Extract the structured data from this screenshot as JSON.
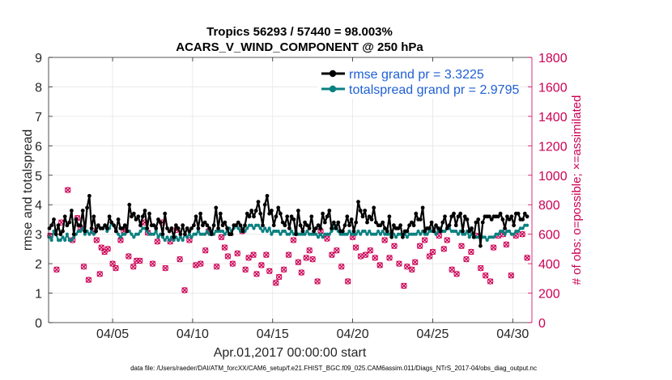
{
  "chart_data": {
    "type": "line",
    "title": "Tropics 56293 / 57440 = 98.003%",
    "subtitle": "ACARS_V_WIND_COMPONENT @ 250 hPa",
    "xlabel": "Apr.01,2017 00:00:00 start",
    "ylabel_left": "rmse and totalspread",
    "ylabel_right": "# of obs: o=possible; ×=assimilated",
    "footer": "data file: /Users/raeder/DAI/ATM_forcXX/CAM6_setup/f.e21.FHIST_BGC.f09_025.CAM6assim.011/Diags_NTrS_2017-04/obs_diag_output.nc",
    "xlim": [
      1.0,
      31.2
    ],
    "ylim_left": [
      0,
      9
    ],
    "ylim_right": [
      0,
      1800
    ],
    "x_ticks": [
      5,
      10,
      15,
      20,
      25,
      30
    ],
    "x_tick_labels": [
      "04/05",
      "04/10",
      "04/15",
      "04/20",
      "04/25",
      "04/30"
    ],
    "y_left_ticks": [
      "0",
      "1",
      "2",
      "3",
      "4",
      "5",
      "6",
      "7",
      "8",
      "9"
    ],
    "y_right_ticks": [
      "0",
      "200",
      "400",
      "600",
      "800",
      "1000",
      "1200",
      "1400",
      "1600",
      "1800"
    ],
    "colors": {
      "rmse": "#000000",
      "spread": "#0a8080",
      "obs": "#cc0055",
      "legend_text": "#1f5fd6"
    },
    "series": [
      {
        "name": "rmse",
        "label": "rmse grand pr = 3.3225",
        "values": [
          3.2,
          3.3,
          3.5,
          3.0,
          3.3,
          3.0,
          3.1,
          3.6,
          3.3,
          3.4,
          3.8,
          3.0,
          3.5,
          3.3,
          3.3,
          3.8,
          3.1,
          3.9,
          4.3,
          3.2,
          3.6,
          3.1,
          3.3,
          3.2,
          3.2,
          3.3,
          3.2,
          3.6,
          3.4,
          3.3,
          3.1,
          3.5,
          3.2,
          3.2,
          3.3,
          3.1,
          4.0,
          3.6,
          3.7,
          3.5,
          3.6,
          3.3,
          3.6,
          3.8,
          3.2,
          3.7,
          3.3,
          3.3,
          3.2,
          3.5,
          3.4,
          3.0,
          3.7,
          3.2,
          3.1,
          3.2,
          2.9,
          3.3,
          3.2,
          3.0,
          3.3,
          3.0,
          3.2,
          3.1,
          3.2,
          3.3,
          3.6,
          3.2,
          3.7,
          3.3,
          3.4,
          3.3,
          3.2,
          3.0,
          3.3,
          3.9,
          3.2,
          3.7,
          3.3,
          3.4,
          3.2,
          3.0,
          3.0,
          3.3,
          3.3,
          3.4,
          3.3,
          3.1,
          3.3,
          3.7,
          3.6,
          3.8,
          3.6,
          3.8,
          4.1,
          3.7,
          3.3,
          4.0,
          4.3,
          3.7,
          3.8,
          3.3,
          3.6,
          3.9,
          3.7,
          3.4,
          3.3,
          3.6,
          3.2,
          3.6,
          3.5,
          3.0,
          3.8,
          3.3,
          3.1,
          3.4,
          3.3,
          3.2,
          3.6,
          3.1,
          3.2,
          3.3,
          3.2,
          3.7,
          3.4,
          3.6,
          3.8,
          3.2,
          3.4,
          3.2,
          3.4,
          3.1,
          3.1,
          3.3,
          3.6,
          3.3,
          3.5,
          3.1,
          3.4,
          4.1,
          3.8,
          3.6,
          3.8,
          3.4,
          3.6,
          3.5,
          3.9,
          3.4,
          3.3,
          3.3,
          3.4,
          3.2,
          3.1,
          3.6,
          2.9,
          3.3,
          3.2,
          3.2,
          3.3,
          2.9,
          3.1,
          3.1,
          3.3,
          3.4,
          3.3,
          3.7,
          3.5,
          3.5,
          3.9,
          3.1,
          3.2,
          3.2,
          3.4,
          3.1,
          3.3,
          3.2,
          3.1,
          3.4,
          3.6,
          3.2,
          3.3,
          3.6,
          3.7,
          3.3,
          3.6,
          3.7,
          3.1,
          3.6,
          3.5,
          3.1,
          3.2,
          2.9,
          3.4,
          3.5,
          2.6,
          3.4,
          3.6,
          3.6,
          3.6,
          3.5,
          3.6,
          3.6,
          3.6,
          3.7,
          3.5,
          3.2,
          3.6,
          3.5,
          3.6,
          3.3,
          3.7,
          3.7,
          3.5,
          3.5,
          3.7,
          3.6
        ]
      },
      {
        "name": "totalspread",
        "label": "totalspread grand pr = 2.9795",
        "values": [
          2.9,
          2.8,
          3.1,
          3.0,
          2.8,
          2.8,
          2.9,
          2.8,
          3.0,
          2.8,
          2.8,
          2.9,
          3.0,
          3.1,
          3.1,
          3.2,
          3.0,
          3.1,
          3.0,
          3.1,
          3.0,
          3.1,
          3.3,
          3.2,
          3.2,
          3.3,
          3.1,
          3.2,
          3.4,
          3.3,
          3.2,
          3.0,
          2.9,
          3.0,
          3.0,
          3.1,
          3.1,
          3.0,
          2.9,
          3.0,
          3.0,
          3.1,
          3.2,
          3.2,
          3.1,
          3.0,
          3.0,
          3.0,
          3.1,
          2.9,
          3.0,
          2.9,
          2.8,
          2.9,
          2.8,
          2.9,
          2.8,
          2.9,
          2.8,
          2.9,
          2.8,
          3.0,
          2.9,
          3.0,
          2.9,
          3.0,
          3.0,
          3.1,
          3.0,
          3.0,
          3.0,
          3.1,
          3.0,
          3.1,
          3.0,
          3.1,
          3.1,
          3.1,
          3.1,
          3.0,
          3.1,
          3.2,
          3.1,
          3.2,
          3.3,
          3.2,
          3.1,
          3.2,
          3.1,
          3.2,
          3.3,
          3.3,
          3.2,
          3.3,
          3.3,
          3.2,
          3.1,
          3.2,
          3.1,
          3.2,
          3.0,
          3.1,
          3.1,
          3.1,
          3.0,
          3.1,
          3.1,
          3.0,
          3.0,
          3.1,
          3.0,
          3.1,
          3.0,
          3.0,
          3.0,
          3.0,
          3.1,
          3.0,
          3.0,
          3.0,
          3.0,
          2.9,
          3.0,
          2.9,
          3.0,
          3.0,
          3.0,
          3.1,
          3.2,
          3.3,
          3.1,
          3.0,
          3.0,
          3.0,
          3.0,
          3.1,
          3.0,
          3.0,
          3.0,
          3.1,
          3.0,
          3.1,
          3.1,
          3.0,
          3.1,
          3.0,
          3.0,
          3.0,
          3.1,
          3.0,
          3.1,
          3.0,
          3.0,
          3.0,
          3.1,
          3.0,
          2.9,
          3.0,
          3.0,
          3.0,
          3.0,
          2.9,
          3.0,
          3.0,
          3.0,
          3.0,
          3.1,
          3.0,
          3.1,
          3.0,
          3.0,
          3.1,
          3.1,
          3.2,
          3.0,
          3.1,
          3.2,
          3.1,
          3.1,
          3.2,
          3.2,
          3.1,
          3.1,
          3.1,
          3.0,
          3.1,
          3.0,
          3.0,
          3.1,
          2.9,
          3.0,
          3.0,
          2.9,
          2.9,
          3.0,
          2.9,
          2.9,
          2.8,
          2.9,
          2.9,
          2.9,
          3.0,
          3.0,
          3.1,
          3.1,
          3.0,
          3.1,
          3.1,
          3.0,
          3.0,
          3.1,
          3.1,
          3.2,
          3.2,
          3.3,
          3.3
        ]
      }
    ],
    "obs_assimilated": [
      [
        1.1,
        590
      ],
      [
        1.5,
        360
      ],
      [
        1.8,
        680
      ],
      [
        2.2,
        900
      ],
      [
        2.5,
        560
      ],
      [
        2.8,
        710
      ],
      [
        3.0,
        640
      ],
      [
        3.2,
        380
      ],
      [
        3.5,
        290
      ],
      [
        3.8,
        620
      ],
      [
        4.0,
        560
      ],
      [
        4.2,
        330
      ],
      [
        4.3,
        510
      ],
      [
        4.5,
        480
      ],
      [
        4.7,
        500
      ],
      [
        5.0,
        400
      ],
      [
        5.2,
        370
      ],
      [
        5.5,
        560
      ],
      [
        5.7,
        620
      ],
      [
        6.0,
        450
      ],
      [
        6.3,
        380
      ],
      [
        6.5,
        420
      ],
      [
        6.7,
        420
      ],
      [
        7.0,
        680
      ],
      [
        7.2,
        610
      ],
      [
        7.5,
        400
      ],
      [
        7.8,
        550
      ],
      [
        8.1,
        680
      ],
      [
        8.3,
        370
      ],
      [
        8.6,
        550
      ],
      [
        9.0,
        630
      ],
      [
        9.2,
        430
      ],
      [
        9.5,
        220
      ],
      [
        9.8,
        560
      ],
      [
        10.2,
        390
      ],
      [
        10.5,
        400
      ],
      [
        10.8,
        490
      ],
      [
        11.0,
        620
      ],
      [
        11.5,
        380
      ],
      [
        11.8,
        580
      ],
      [
        12.0,
        510
      ],
      [
        12.2,
        450
      ],
      [
        12.5,
        400
      ],
      [
        12.8,
        470
      ],
      [
        13.1,
        620
      ],
      [
        13.3,
        360
      ],
      [
        13.5,
        440
      ],
      [
        13.8,
        460
      ],
      [
        14.0,
        330
      ],
      [
        14.3,
        390
      ],
      [
        14.6,
        460
      ],
      [
        14.8,
        350
      ],
      [
        15.2,
        270
      ],
      [
        15.4,
        310
      ],
      [
        15.7,
        360
      ],
      [
        16.0,
        460
      ],
      [
        16.3,
        560
      ],
      [
        16.6,
        410
      ],
      [
        16.8,
        340
      ],
      [
        17.1,
        440
      ],
      [
        17.3,
        490
      ],
      [
        17.5,
        430
      ],
      [
        17.8,
        280
      ],
      [
        18.0,
        620
      ],
      [
        18.4,
        570
      ],
      [
        18.7,
        460
      ],
      [
        19.0,
        490
      ],
      [
        19.3,
        380
      ],
      [
        19.7,
        280
      ],
      [
        20.0,
        580
      ],
      [
        20.2,
        510
      ],
      [
        20.5,
        450
      ],
      [
        20.8,
        460
      ],
      [
        21.1,
        490
      ],
      [
        21.4,
        440
      ],
      [
        21.7,
        390
      ],
      [
        22.0,
        560
      ],
      [
        22.3,
        440
      ],
      [
        22.6,
        520
      ],
      [
        22.9,
        400
      ],
      [
        23.2,
        250
      ],
      [
        23.4,
        380
      ],
      [
        23.7,
        360
      ],
      [
        23.9,
        410
      ],
      [
        24.2,
        520
      ],
      [
        24.5,
        560
      ],
      [
        24.8,
        450
      ],
      [
        25.0,
        480
      ],
      [
        25.4,
        590
      ],
      [
        25.7,
        500
      ],
      [
        25.9,
        560
      ],
      [
        26.2,
        360
      ],
      [
        26.5,
        330
      ],
      [
        26.8,
        520
      ],
      [
        27.1,
        430
      ],
      [
        27.4,
        480
      ],
      [
        27.7,
        590
      ],
      [
        28.0,
        370
      ],
      [
        28.3,
        320
      ],
      [
        28.6,
        280
      ],
      [
        28.8,
        510
      ],
      [
        29.1,
        590
      ],
      [
        29.4,
        600
      ],
      [
        29.6,
        530
      ],
      [
        29.9,
        320
      ],
      [
        30.2,
        590
      ],
      [
        30.6,
        600
      ],
      [
        30.9,
        440
      ]
    ]
  }
}
